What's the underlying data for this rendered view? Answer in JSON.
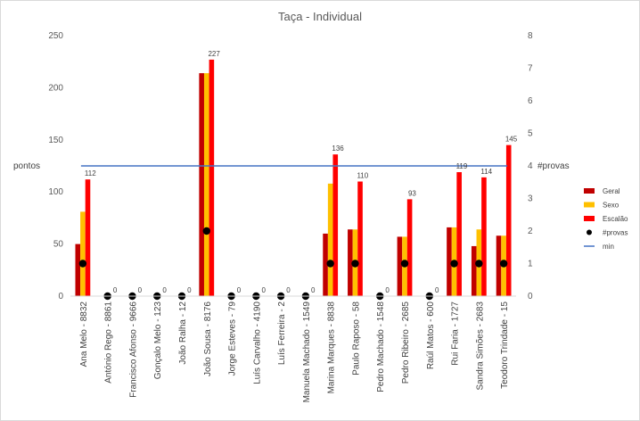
{
  "chart_data": {
    "type": "bar",
    "title": "Taça - Individual",
    "ylabel": "pontos",
    "y2label": "#provas",
    "ylim": [
      0,
      250
    ],
    "y_ticks": [
      0,
      50,
      100,
      150,
      200,
      250
    ],
    "y2lim": [
      0,
      8
    ],
    "y2_ticks": [
      0,
      1,
      2,
      3,
      4,
      5,
      6,
      7,
      8
    ],
    "categories": [
      "Ana Melo - 8832",
      "António Rego - 8861",
      "Francisco Afonso - 9666",
      "Gonçalo Melo - 123",
      "João Ralha - 12",
      "João Sousa - 8176",
      "Jorge Esteves - 79",
      "Luís Carvalho - 4190",
      "Luís Ferreira - 2",
      "Manuela Machado - 1549",
      "Marina Marques - 8838",
      "Paulo Raposo - 58",
      "Pedro Machado - 1548",
      "Pedro Ribeiro - 2685",
      "Raúl Matos - 600",
      "Rui Faria - 1727",
      "Sandra Simões - 2683",
      "Teodoro Trindade - 15"
    ],
    "series": [
      {
        "name": "Geral",
        "color": "#c00000",
        "values": [
          50,
          0,
          0,
          0,
          0,
          214,
          0,
          0,
          0,
          0,
          60,
          64,
          0,
          57,
          0,
          66,
          48,
          58
        ]
      },
      {
        "name": "Sexo",
        "color": "#ffc000",
        "values": [
          81,
          0,
          0,
          0,
          0,
          214,
          0,
          0,
          0,
          0,
          108,
          64,
          0,
          57,
          0,
          66,
          64,
          58
        ]
      },
      {
        "name": "Escalão",
        "color": "#ff0000",
        "values": [
          112,
          0,
          0,
          0,
          0,
          227,
          0,
          0,
          0,
          0,
          136,
          110,
          0,
          93,
          0,
          119,
          114,
          145
        ]
      }
    ],
    "data_labels": [
      "112",
      "0",
      "0",
      "0",
      "0",
      "227",
      "0",
      "0",
      "0",
      "0",
      "136",
      "110",
      "0",
      "93",
      "0",
      "119",
      "114",
      "145"
    ],
    "provas": {
      "name": "#provas",
      "color": "#000000",
      "values": [
        1,
        0,
        0,
        0,
        0,
        2,
        0,
        0,
        0,
        0,
        1,
        1,
        0,
        1,
        0,
        1,
        1,
        1
      ]
    },
    "min_line": {
      "name": "min",
      "color": "#4472c4",
      "value": 4
    },
    "legend_position": "right",
    "grid": false
  }
}
